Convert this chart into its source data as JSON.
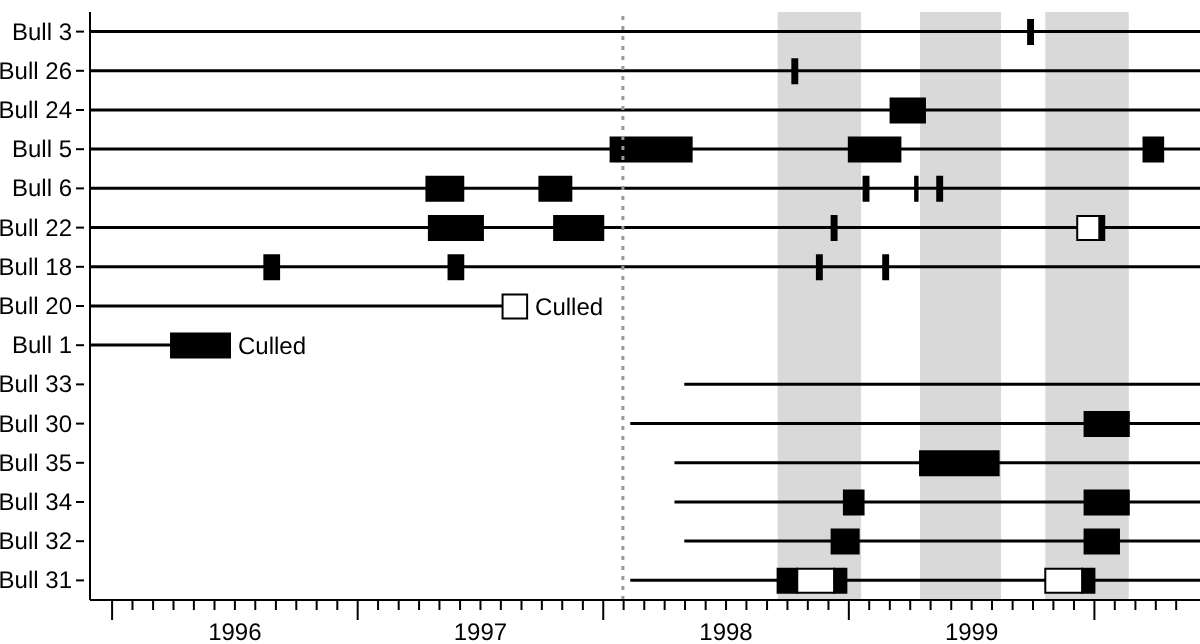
{
  "chart_data": {
    "type": "bar",
    "orientation": "horizontal",
    "categories": [
      "Bull 3",
      "Bull 26",
      "Bull 24",
      "Bull 5",
      "Bull 6",
      "Bull 22",
      "Bull 18",
      "Bull 20",
      "Bull 1",
      "Bull 33",
      "Bull 30",
      "Bull 35",
      "Bull 34",
      "Bull 32",
      "Bull 31"
    ],
    "series": [
      {
        "color": "#000000",
        "base": [
          1995.91,
          1995.91,
          1995.91,
          1995.91,
          1995.91,
          1995.91,
          1995.91,
          1995.91,
          1995.91,
          1998.33,
          1998.11,
          1998.29,
          1998.29,
          1998.33,
          1998.11
        ],
        "values": [
          4.52,
          4.52,
          4.52,
          4.52,
          4.52,
          4.52,
          4.52,
          1.68,
          0.33,
          2.1,
          2.32,
          2.14,
          2.14,
          2.1,
          2.32
        ]
      },
      {
        "color": "#000000",
        "base": [
          1999.73,
          1998.77,
          1999.17,
          1998.03,
          1997.28,
          1997.29,
          1996.62,
          null,
          1996.24,
          null,
          1999.96,
          1999.29,
          1998.98,
          1998.93,
          1998.71
        ],
        "values": [
          0.02,
          0.02,
          0.14,
          0.33,
          0.15,
          0.22,
          0.06,
          null,
          0.24,
          null,
          0.18,
          0.32,
          0.08,
          0.11,
          0.08
        ]
      },
      {
        "color": "#000000",
        "base": [
          null,
          null,
          null,
          1999.0,
          1997.74,
          1997.8,
          1997.37,
          null,
          null,
          null,
          null,
          null,
          1999.96,
          1999.96,
          1998.94
        ],
        "values": [
          null,
          null,
          null,
          0.21,
          0.13,
          0.2,
          0.06,
          null,
          null,
          null,
          null,
          null,
          0.18,
          0.14,
          0.05
        ]
      },
      {
        "color": "#000000",
        "base": [
          null,
          null,
          null,
          2000.2,
          1999.06,
          1998.93,
          1998.87,
          null,
          null,
          null,
          null,
          null,
          null,
          null,
          1999.95
        ],
        "values": [
          null,
          null,
          null,
          0.08,
          0.02,
          0.02,
          0.02,
          null,
          null,
          null,
          null,
          null,
          null,
          null,
          0.05
        ]
      },
      {
        "color": "#000000",
        "base": [
          null,
          null,
          null,
          null,
          1999.27,
          2000.02,
          1999.14,
          null,
          null,
          null,
          null,
          null,
          null,
          null,
          null
        ],
        "values": [
          null,
          null,
          null,
          null,
          0.01,
          0.02,
          0.02,
          null,
          null,
          null,
          null,
          null,
          null,
          null,
          null
        ]
      },
      {
        "color": "#000000",
        "base": [
          null,
          null,
          null,
          null,
          1999.36,
          null,
          null,
          null,
          null,
          null,
          null,
          null,
          null,
          null,
          null
        ],
        "values": [
          null,
          null,
          null,
          null,
          0.02,
          null,
          null,
          null,
          null,
          null,
          null,
          null,
          null,
          null,
          null
        ]
      },
      {
        "color": "#ffffff",
        "base": [
          null,
          null,
          null,
          null,
          null,
          1999.93,
          null,
          1997.59,
          null,
          null,
          null,
          null,
          null,
          null,
          1998.79
        ],
        "values": [
          null,
          null,
          null,
          null,
          null,
          0.09,
          null,
          0.1,
          null,
          null,
          null,
          null,
          null,
          null,
          0.15
        ]
      },
      {
        "color": "#ffffff",
        "base": [
          null,
          null,
          null,
          null,
          null,
          null,
          null,
          null,
          null,
          null,
          null,
          null,
          null,
          null,
          1999.8
        ],
        "values": [
          null,
          null,
          null,
          null,
          null,
          null,
          null,
          null,
          null,
          null,
          null,
          null,
          null,
          null,
          0.15
        ]
      }
    ],
    "xlim": [
      1995.91,
      2000.43
    ],
    "xticks": [
      {
        "value": 1996,
        "label": null
      },
      {
        "value": 1996.083,
        "label": null
      },
      {
        "value": 1996.167,
        "label": null
      },
      {
        "value": 1996.25,
        "label": null
      },
      {
        "value": 1996.333,
        "label": null
      },
      {
        "value": 1996.417,
        "label": null
      },
      {
        "value": 1996.5,
        "label": "1996"
      },
      {
        "value": 1996.583,
        "label": null
      },
      {
        "value": 1996.667,
        "label": null
      },
      {
        "value": 1996.75,
        "label": null
      },
      {
        "value": 1996.833,
        "label": null
      },
      {
        "value": 1996.917,
        "label": null
      },
      {
        "value": 1997,
        "label": null
      },
      {
        "value": 1997.083,
        "label": null
      },
      {
        "value": 1997.167,
        "label": null
      },
      {
        "value": 1997.25,
        "label": null
      },
      {
        "value": 1997.333,
        "label": null
      },
      {
        "value": 1997.417,
        "label": null
      },
      {
        "value": 1997.5,
        "label": "1997"
      },
      {
        "value": 1997.583,
        "label": null
      },
      {
        "value": 1997.667,
        "label": null
      },
      {
        "value": 1997.75,
        "label": null
      },
      {
        "value": 1997.833,
        "label": null
      },
      {
        "value": 1997.917,
        "label": null
      },
      {
        "value": 1998,
        "label": null
      },
      {
        "value": 1998.083,
        "label": null
      },
      {
        "value": 1998.167,
        "label": null
      },
      {
        "value": 1998.25,
        "label": null
      },
      {
        "value": 1998.333,
        "label": null
      },
      {
        "value": 1998.417,
        "label": null
      },
      {
        "value": 1998.5,
        "label": "1998"
      },
      {
        "value": 1998.583,
        "label": null
      },
      {
        "value": 1998.667,
        "label": null
      },
      {
        "value": 1998.75,
        "label": null
      },
      {
        "value": 1998.833,
        "label": null
      },
      {
        "value": 1998.917,
        "label": null
      },
      {
        "value": 1999,
        "label": null
      },
      {
        "value": 1999.083,
        "label": null
      },
      {
        "value": 1999.167,
        "label": null
      },
      {
        "value": 1999.25,
        "label": null
      },
      {
        "value": 1999.333,
        "label": null
      },
      {
        "value": 1999.417,
        "label": null
      },
      {
        "value": 1999.5,
        "label": "1999"
      },
      {
        "value": 1999.583,
        "label": null
      },
      {
        "value": 1999.667,
        "label": null
      },
      {
        "value": 1999.75,
        "label": null
      },
      {
        "value": 1999.833,
        "label": null
      },
      {
        "value": 1999.917,
        "label": null
      },
      {
        "value": 2000,
        "label": null
      },
      {
        "value": 2000.083,
        "label": null
      },
      {
        "value": 2000.167,
        "label": null
      },
      {
        "value": 2000.25,
        "label": null
      },
      {
        "value": 2000.333,
        "label": null
      }
    ],
    "ref_lines": [
      {
        "axis": "x",
        "value": 1998.08,
        "color": "#999999",
        "line_style": "dotted"
      }
    ],
    "bands": [
      {
        "axis": "x",
        "from": 1998.71,
        "to": 1999.05,
        "color": "#d9d9d9"
      },
      {
        "axis": "x",
        "from": 1999.29,
        "to": 1999.62,
        "color": "#d9d9d9"
      },
      {
        "axis": "x",
        "from": 1999.8,
        "to": 2000.14,
        "color": "#d9d9d9"
      }
    ],
    "annotations": [
      {
        "text": "Culled",
        "x": 1997.69,
        "y": "Bull 20"
      },
      {
        "text": "Culled",
        "x": 1996.48,
        "y": "Bull 1"
      }
    ]
  }
}
